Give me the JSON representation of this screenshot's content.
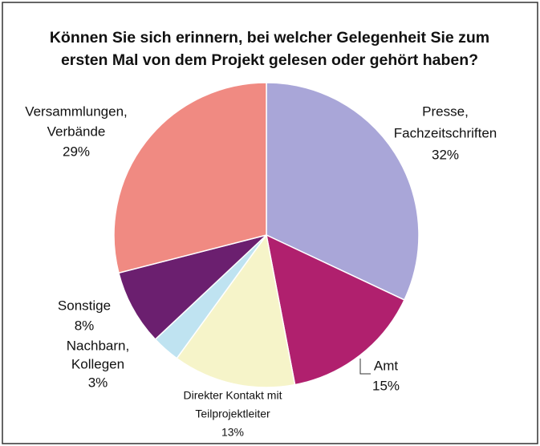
{
  "chart_data": {
    "type": "pie",
    "title": [
      "Können Sie sich erinnern, bei welcher Gelegenheit Sie zum",
      "ersten Mal von dem Projekt gelesen oder gehört haben?"
    ],
    "categories": [
      [
        "Presse,",
        "Fachzeitschriften"
      ],
      [
        "Amt"
      ],
      [
        "Direkter Kontakt mit",
        "Teilprojektleiter"
      ],
      [
        "Nachbarn,",
        "Kollegen"
      ],
      [
        "Sonstige"
      ],
      [
        "Versammlungen,",
        "Verbände"
      ]
    ],
    "values": [
      32,
      15,
      13,
      3,
      8,
      29
    ],
    "value_labels": [
      "32%",
      "15%",
      "13%",
      "3%",
      "8%",
      "29%"
    ],
    "colors": [
      "#a9a6d8",
      "#b0206e",
      "#f6f4c9",
      "#bfe3f1",
      "#6b1f6f",
      "#f08a82"
    ]
  }
}
